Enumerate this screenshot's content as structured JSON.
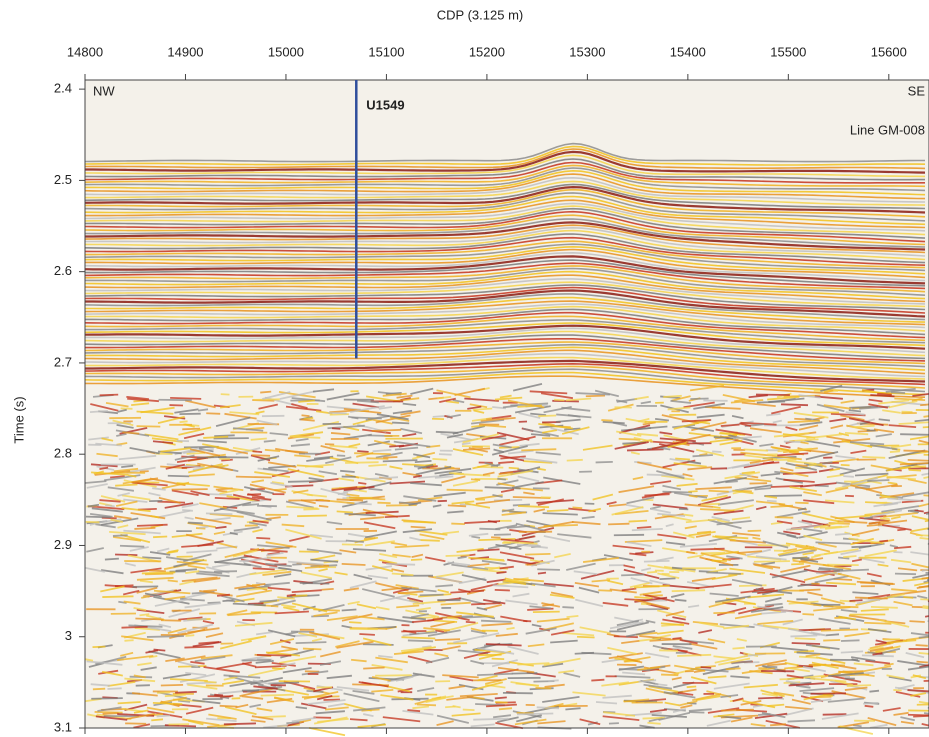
{
  "chart_data": {
    "type": "seismic",
    "title": "CDP (3.125 m)",
    "y_label": "Time (s)",
    "xlim": [
      14800,
      15640
    ],
    "xticks": [
      14800,
      14900,
      15000,
      15100,
      15200,
      15300,
      15400,
      15500,
      15600
    ],
    "ylim": [
      2.39,
      3.1
    ],
    "yticks": [
      2.4,
      2.5,
      2.6,
      2.7,
      2.8,
      2.9,
      3.0,
      3.1
    ],
    "y_inverted": true,
    "annotations": {
      "left": "NW",
      "right": "SE",
      "line": "Line GM-008"
    },
    "well": {
      "name": "U1549",
      "cdp": 15070,
      "time_bottom": 2.695,
      "color": "#2f4e9c"
    }
  }
}
